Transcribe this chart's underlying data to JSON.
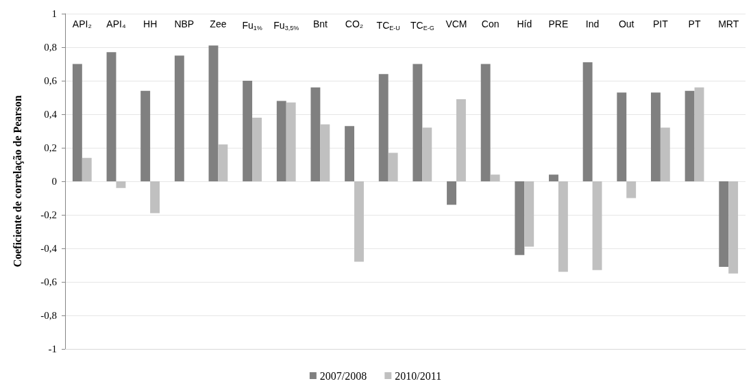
{
  "chart_data": {
    "type": "bar",
    "ylabel": "Coeficiente de correlação de Pearson",
    "categories": [
      "API₂",
      "API₄",
      "HH",
      "NBP",
      "Zee",
      "Fu$_{1%}$",
      "Fu$_{3,5%}$",
      "Bnt",
      "CO₂",
      "TC$_{E-U}$",
      "TC$_{E-G}$",
      "VCM",
      "Con",
      "Híd",
      "PRE",
      "Ind",
      "Out",
      "PIT",
      "PT",
      "MRT"
    ],
    "series": [
      {
        "name": "2007/2008",
        "color": "#808080",
        "values": [
          0.7,
          0.77,
          0.54,
          0.75,
          0.81,
          0.6,
          0.48,
          0.56,
          0.33,
          0.64,
          0.7,
          -0.14,
          0.7,
          -0.44,
          0.04,
          0.71,
          0.53,
          0.53,
          0.54,
          -0.51
        ]
      },
      {
        "name": "2010/2011",
        "color": "#c0c0c0",
        "values": [
          0.14,
          -0.04,
          -0.19,
          0.0,
          0.22,
          0.38,
          0.47,
          0.34,
          -0.48,
          0.17,
          0.32,
          0.49,
          0.04,
          -0.39,
          -0.54,
          -0.53,
          -0.1,
          0.32,
          0.56,
          -0.55
        ]
      }
    ],
    "ylim": [
      -1,
      1
    ],
    "yticks": [
      -1,
      {
        "value": -0.8,
        "label": "-0,8"
      },
      {
        "value": -0.6,
        "label": "-0,6"
      },
      {
        "value": -0.4,
        "label": "-0,4"
      },
      {
        "value": -0.2,
        "label": "-0,2"
      },
      0,
      {
        "value": 0.2,
        "label": "0,2"
      },
      {
        "value": 0.4,
        "label": "0,4"
      },
      {
        "value": 0.6,
        "label": "0,6"
      },
      {
        "value": 0.8,
        "label": "0,8"
      },
      1
    ],
    "grid": "y",
    "legend": "bottom"
  }
}
